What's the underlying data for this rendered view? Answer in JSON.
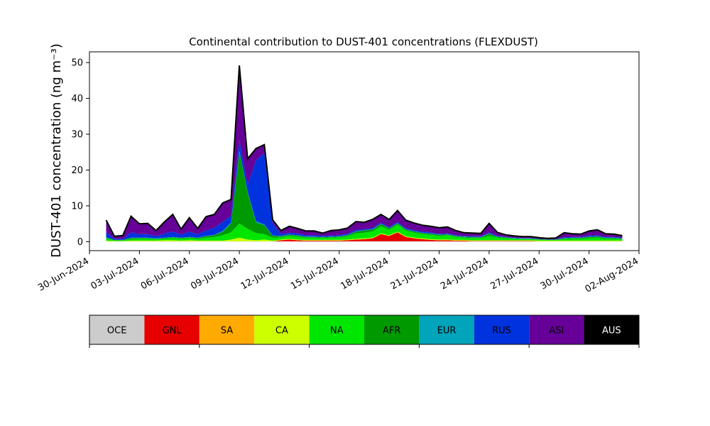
{
  "chart_data": {
    "type": "area",
    "stacked": true,
    "title": "Continental contribution to DUST-401 concentrations (FLEXDUST)",
    "ylabel": "DUST-401 concentration (ng m⁻³)",
    "xlabel": "",
    "ylim": [
      -2.5,
      53
    ],
    "xlim": [
      "2024-06-30",
      "2024-08-02"
    ],
    "yticks": [
      0,
      10,
      20,
      30,
      40,
      50
    ],
    "xticks": [
      "30-Jun-2024",
      "03-Jul-2024",
      "06-Jul-2024",
      "09-Jul-2024",
      "12-Jul-2024",
      "15-Jul-2024",
      "18-Jul-2024",
      "21-Jul-2024",
      "24-Jul-2024",
      "27-Jul-2024",
      "30-Jul-2024",
      "02-Aug-2024"
    ],
    "x": [
      "2024-07-01",
      "2024-07-01T12:00",
      "2024-07-02",
      "2024-07-02T12:00",
      "2024-07-03",
      "2024-07-03T12:00",
      "2024-07-04",
      "2024-07-04T12:00",
      "2024-07-05",
      "2024-07-05T12:00",
      "2024-07-06",
      "2024-07-06T12:00",
      "2024-07-07",
      "2024-07-07T12:00",
      "2024-07-08",
      "2024-07-08T12:00",
      "2024-07-09",
      "2024-07-09T12:00",
      "2024-07-10",
      "2024-07-10T12:00",
      "2024-07-11",
      "2024-07-11T12:00",
      "2024-07-12",
      "2024-07-12T12:00",
      "2024-07-13",
      "2024-07-13T12:00",
      "2024-07-14",
      "2024-07-14T12:00",
      "2024-07-15",
      "2024-07-15T12:00",
      "2024-07-16",
      "2024-07-16T12:00",
      "2024-07-17",
      "2024-07-17T12:00",
      "2024-07-18",
      "2024-07-18T12:00",
      "2024-07-19",
      "2024-07-19T12:00",
      "2024-07-20",
      "2024-07-20T12:00",
      "2024-07-21",
      "2024-07-21T12:00",
      "2024-07-22",
      "2024-07-22T12:00",
      "2024-07-23",
      "2024-07-23T12:00",
      "2024-07-24",
      "2024-07-24T12:00",
      "2024-07-25",
      "2024-07-25T12:00",
      "2024-07-26",
      "2024-07-26T12:00",
      "2024-07-27",
      "2024-07-27T12:00",
      "2024-07-28",
      "2024-07-28T12:00",
      "2024-07-29",
      "2024-07-29T12:00",
      "2024-07-30",
      "2024-07-30T12:00",
      "2024-07-31",
      "2024-07-31T12:00",
      "2024-08-01"
    ],
    "series": [
      {
        "name": "OCE",
        "color": "#cccccc",
        "values": [
          0.1,
          0.1,
          0.1,
          0.1,
          0.1,
          0.1,
          0.1,
          0.1,
          0.1,
          0.1,
          0.1,
          0.1,
          0.1,
          0.1,
          0.1,
          0.1,
          0.1,
          0.1,
          0.1,
          0.1,
          0.1,
          0.1,
          0.1,
          0.1,
          0.1,
          0.1,
          0.1,
          0.1,
          0.1,
          0.1,
          0.1,
          0.1,
          0.1,
          0.1,
          0.1,
          0.1,
          0.1,
          0.1,
          0.1,
          0.1,
          0.1,
          0.1,
          0.1,
          0.1,
          0.1,
          0.1,
          0.1,
          0.1,
          0.1,
          0.1,
          0.1,
          0.1,
          0.1,
          0.1,
          0.1,
          0.1,
          0.1,
          0.1,
          0.1,
          0.1,
          0.1,
          0.1,
          0.1
        ]
      },
      {
        "name": "GNL",
        "color": "#e60000",
        "values": [
          0,
          0,
          0,
          0,
          0,
          0,
          0,
          0,
          0,
          0,
          0,
          0,
          0,
          0,
          0,
          0,
          0,
          0,
          0,
          0,
          0,
          0.3,
          0.5,
          0.3,
          0.2,
          0.2,
          0.2,
          0.2,
          0.2,
          0.3,
          0.5,
          0.6,
          0.8,
          2.0,
          1.5,
          2.5,
          1.2,
          0.8,
          0.6,
          0.4,
          0.3,
          0.3,
          0.2,
          0.2,
          0.1,
          0.1,
          0.1,
          0.1,
          0.1,
          0.1,
          0.1,
          0.1,
          0,
          0,
          0,
          0,
          0,
          0,
          0,
          0,
          0,
          0,
          0
        ]
      },
      {
        "name": "SA",
        "color": "#ffaa00",
        "values": [
          0,
          0,
          0,
          0,
          0,
          0,
          0,
          0,
          0,
          0,
          0,
          0,
          0,
          0,
          0,
          0,
          0,
          0,
          0,
          0,
          0,
          0,
          0,
          0,
          0,
          0,
          0,
          0,
          0,
          0,
          0,
          0,
          0,
          0,
          0,
          0,
          0,
          0,
          0,
          0,
          0,
          0,
          0,
          0,
          0,
          0,
          0,
          0,
          0,
          0,
          0,
          0,
          0,
          0,
          0,
          0,
          0,
          0,
          0,
          0,
          0,
          0,
          0
        ]
      },
      {
        "name": "CA",
        "color": "#ccff00",
        "values": [
          0.2,
          0.1,
          0.1,
          0.2,
          0.2,
          0.2,
          0.2,
          0.3,
          0.3,
          0.2,
          0.3,
          0.2,
          0.2,
          0.2,
          0.2,
          0.5,
          1.0,
          0.5,
          0.3,
          0.5,
          0.2,
          0.2,
          0.2,
          0.2,
          0.2,
          0.2,
          0.2,
          0.2,
          0.2,
          0.2,
          0.2,
          0.2,
          0.2,
          0.2,
          0.2,
          0.2,
          0.2,
          0.2,
          0.2,
          0.2,
          0.2,
          0.2,
          0.2,
          0.2,
          0.2,
          0.2,
          0.2,
          0.2,
          0.2,
          0.2,
          0.2,
          0.2,
          0.2,
          0.2,
          0.2,
          0.2,
          0.2,
          0.2,
          0.2,
          0.2,
          0.2,
          0.2,
          0.2
        ]
      },
      {
        "name": "NA",
        "color": "#00e600",
        "values": [
          0.6,
          0.2,
          0.2,
          0.4,
          0.5,
          0.5,
          0.4,
          0.4,
          0.6,
          0.5,
          0.6,
          0.5,
          0.8,
          1.0,
          1.5,
          2.0,
          4.0,
          3.0,
          2.0,
          1.5,
          0.8,
          0.6,
          0.8,
          0.8,
          0.6,
          0.6,
          0.5,
          0.6,
          0.7,
          0.9,
          1.5,
          1.6,
          1.8,
          2.0,
          1.5,
          2.0,
          1.6,
          1.4,
          1.2,
          1.2,
          1.0,
          1.2,
          0.8,
          0.6,
          0.6,
          0.6,
          1.2,
          0.7,
          0.5,
          0.4,
          0.3,
          0.3,
          0.3,
          0.2,
          0.2,
          0.4,
          0.5,
          0.5,
          0.7,
          0.8,
          0.5,
          0.5,
          0.4
        ]
      },
      {
        "name": "AFR",
        "color": "#009900",
        "values": [
          0.2,
          0.1,
          0.1,
          0.3,
          0.2,
          0.2,
          0.1,
          0.2,
          0.2,
          0.2,
          0.2,
          0.2,
          0.4,
          0.5,
          1.0,
          2.5,
          20.0,
          10.0,
          3.0,
          2.5,
          0.5,
          0.3,
          0.3,
          0.3,
          0.2,
          0.2,
          0.2,
          0.2,
          0.2,
          0.3,
          0.5,
          0.6,
          0.5,
          0.6,
          0.4,
          0.3,
          0.3,
          0.3,
          0.3,
          0.3,
          0.3,
          0.2,
          0.2,
          0.2,
          0.2,
          0.2,
          0.6,
          0.2,
          0.2,
          0.1,
          0.1,
          0.1,
          0.1,
          0.1,
          0.1,
          0.2,
          0.2,
          0.2,
          0.3,
          0.3,
          0.2,
          0.2,
          0.1
        ]
      },
      {
        "name": "EUR",
        "color": "#00a4bb",
        "values": [
          0.1,
          0,
          0,
          0.1,
          0.1,
          0.1,
          0.1,
          0.1,
          0.1,
          0.1,
          0.1,
          0.1,
          0.1,
          0.1,
          0.2,
          0.2,
          0.3,
          0.3,
          0.3,
          0.2,
          0.1,
          0.1,
          0.1,
          0.1,
          0.1,
          0.1,
          0.1,
          0.1,
          0.1,
          0.1,
          0.1,
          0.1,
          0.1,
          0.1,
          0.1,
          0.1,
          0.1,
          0.1,
          0.1,
          0.1,
          0.1,
          0.1,
          0.1,
          0.1,
          0.1,
          0.1,
          0.1,
          0.1,
          0.1,
          0.1,
          0.1,
          0.1,
          0,
          0,
          0,
          0.1,
          0.1,
          0.1,
          0.1,
          0.1,
          0.1,
          0.1,
          0.1
        ]
      },
      {
        "name": "RUS",
        "color": "#0033dd",
        "values": [
          1.5,
          0.3,
          0.3,
          1.5,
          1.0,
          1.0,
          0.6,
          1.2,
          1.5,
          0.9,
          1.5,
          1.0,
          1.5,
          2.0,
          2.5,
          2.0,
          3.0,
          2.0,
          17.0,
          20.0,
          3.5,
          0.5,
          0.5,
          0.5,
          0.4,
          0.4,
          0.3,
          0.3,
          0.3,
          0.3,
          0.4,
          0.3,
          0.3,
          0.3,
          0.2,
          0.3,
          0.3,
          0.3,
          0.3,
          0.3,
          0.2,
          0.2,
          0.2,
          0.2,
          0.2,
          0.2,
          0.3,
          0.2,
          0.1,
          0.1,
          0.1,
          0.1,
          0.1,
          0.1,
          0.1,
          0.2,
          0.2,
          0.2,
          0.3,
          0.3,
          0.2,
          0.2,
          0.2
        ]
      },
      {
        "name": "ASI",
        "color": "#660099",
        "values": [
          3.3,
          0.7,
          0.9,
          4.5,
          2.9,
          3.0,
          1.6,
          3.2,
          4.8,
          1.5,
          3.9,
          1.6,
          3.9,
          3.7,
          5.3,
          4.5,
          20.8,
          7.2,
          3.3,
          2.3,
          0.9,
          1.0,
          1.8,
          1.4,
          1.2,
          1.2,
          0.8,
          1.4,
          1.5,
          1.6,
          2.3,
          1.9,
          2.4,
          2.3,
          2.2,
          3.2,
          2.2,
          2.0,
          1.8,
          1.7,
          1.7,
          1.8,
          1.3,
          0.9,
          0.9,
          0.8,
          2.5,
          1.0,
          0.6,
          0.5,
          0.4,
          0.4,
          0.3,
          0.2,
          0.3,
          1.3,
          0.9,
          0.8,
          1.3,
          1.5,
          0.9,
          0.8,
          0.6
        ]
      },
      {
        "name": "AUS",
        "color": "#000000",
        "values": [
          0,
          0,
          0,
          0,
          0,
          0,
          0,
          0,
          0,
          0,
          0,
          0,
          0,
          0,
          0,
          0,
          0,
          0,
          0,
          0,
          0,
          0,
          0,
          0,
          0,
          0,
          0,
          0,
          0,
          0,
          0,
          0,
          0,
          0,
          0,
          0,
          0,
          0,
          0,
          0,
          0,
          0,
          0,
          0,
          0,
          0,
          0,
          0,
          0,
          0,
          0,
          0,
          0,
          0,
          0,
          0,
          0,
          0,
          0,
          0,
          0,
          0,
          0
        ]
      }
    ],
    "legend": {
      "placement": "bottom",
      "labels": [
        "OCE",
        "GNL",
        "SA",
        "CA",
        "NA",
        "AFR",
        "EUR",
        "RUS",
        "ASI",
        "AUS"
      ]
    },
    "grid": false
  }
}
